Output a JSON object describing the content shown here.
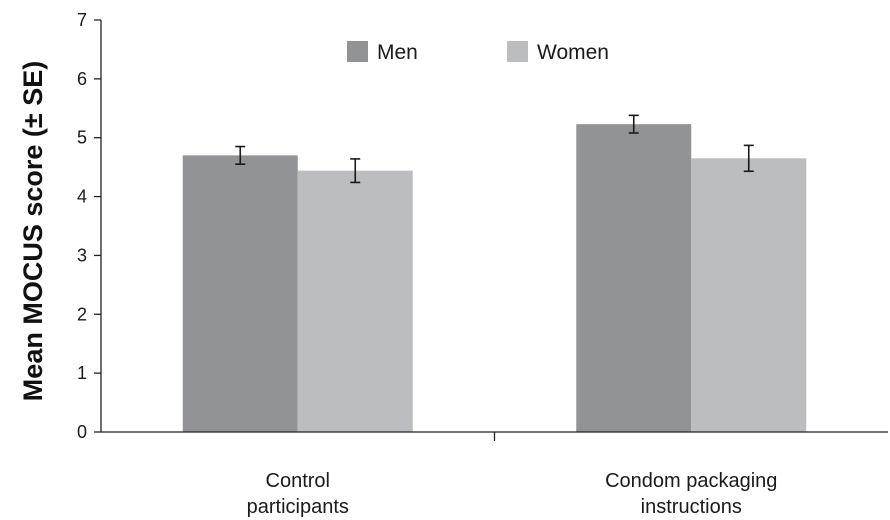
{
  "chart_data": {
    "type": "bar",
    "title": "",
    "xlabel": "",
    "ylabel": "Mean MOCUS score (± SE)",
    "ylim": [
      0,
      7
    ],
    "yticks": [
      0,
      1,
      2,
      3,
      4,
      5,
      6,
      7
    ],
    "categories": [
      [
        "Control",
        "participants"
      ],
      [
        "Condom packaging",
        "instructions"
      ]
    ],
    "series": [
      {
        "name": "Men",
        "color": "#929396",
        "values": [
          4.7,
          5.23
        ],
        "se": [
          0.15,
          0.15
        ]
      },
      {
        "name": "Women",
        "color": "#bcbdc0",
        "values": [
          4.44,
          4.65
        ],
        "se": [
          0.2,
          0.22
        ]
      }
    ],
    "legend": "top-center",
    "grid": false,
    "error_bars": true
  }
}
